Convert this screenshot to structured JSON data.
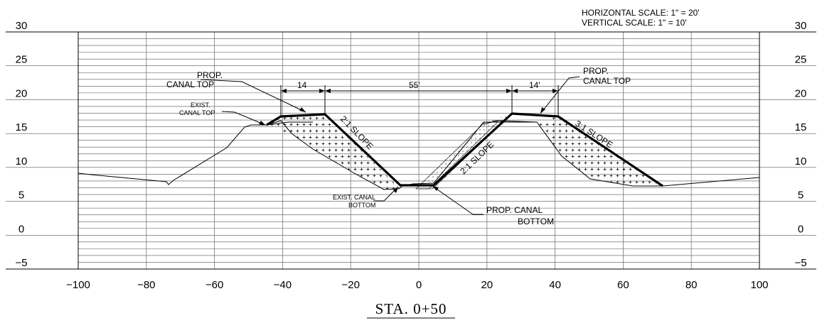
{
  "scale_note": {
    "horizontal": "HORIZONTAL SCALE: 1\" = 20'",
    "vertical": "VERTICAL SCALE: 1\" = 10'"
  },
  "axes": {
    "x_ticks": [
      "-100",
      "-80",
      "-60",
      "-40",
      "-20",
      "0",
      "20",
      "40",
      "60",
      "80",
      "100"
    ],
    "y_ticks": [
      "30",
      "25",
      "20",
      "15",
      "10",
      "5",
      "0",
      "-5"
    ],
    "x_range": [
      -100,
      100
    ],
    "y_range": [
      -5,
      30
    ]
  },
  "labels": {
    "prop_canal_top_left": [
      "PROP.",
      "CANAL TOP"
    ],
    "prop_canal_top_right": [
      "PROP.",
      "CANAL TOP"
    ],
    "exist_canal_top": [
      "EXIST.",
      "CANAL TOP"
    ],
    "exist_canal_bottom": [
      "EXIST. CANAL",
      "BOTTOM"
    ],
    "prop_canal_bottom": [
      "PROP. CANAL",
      "BOTTOM"
    ],
    "slope_left": "2:1 SLOPE",
    "slope_center": "2:1 SLOPE",
    "slope_right": "3:1 SLOPE",
    "dim_left": "14",
    "dim_center": "55'",
    "dim_right": "14'"
  },
  "title": "STA. 0+50"
}
